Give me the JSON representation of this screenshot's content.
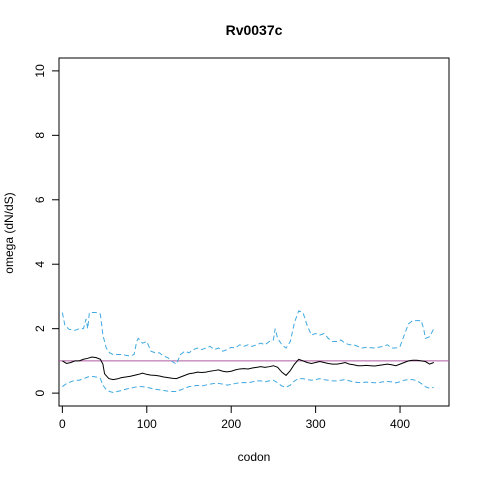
{
  "chart_data": {
    "type": "line",
    "title": "Rv0037c",
    "xlabel": "codon",
    "ylabel": "omega (dN/dS)",
    "xlim": [
      -4,
      458
    ],
    "ylim": [
      -0.4,
      10.4
    ],
    "xticks": [
      0,
      100,
      200,
      300,
      400
    ],
    "yticks": [
      0,
      2,
      4,
      6,
      8,
      10
    ],
    "grid": false,
    "reference_line": {
      "y": 1,
      "color": "#b05aa0"
    },
    "series": [
      {
        "style": "solid",
        "color": "#000000",
        "points": [
          [
            0,
            1.0
          ],
          [
            5,
            0.92
          ],
          [
            10,
            0.95
          ],
          [
            15,
            1.0
          ],
          [
            20,
            1.0
          ],
          [
            25,
            1.05
          ],
          [
            30,
            1.08
          ],
          [
            35,
            1.12
          ],
          [
            40,
            1.1
          ],
          [
            45,
            1.05
          ],
          [
            48,
            0.9
          ],
          [
            50,
            0.6
          ],
          [
            55,
            0.45
          ],
          [
            60,
            0.42
          ],
          [
            65,
            0.44
          ],
          [
            70,
            0.48
          ],
          [
            75,
            0.5
          ],
          [
            80,
            0.52
          ],
          [
            85,
            0.55
          ],
          [
            90,
            0.58
          ],
          [
            95,
            0.62
          ],
          [
            100,
            0.58
          ],
          [
            105,
            0.56
          ],
          [
            110,
            0.55
          ],
          [
            115,
            0.53
          ],
          [
            120,
            0.5
          ],
          [
            125,
            0.48
          ],
          [
            130,
            0.46
          ],
          [
            135,
            0.45
          ],
          [
            140,
            0.5
          ],
          [
            145,
            0.55
          ],
          [
            150,
            0.6
          ],
          [
            155,
            0.62
          ],
          [
            160,
            0.65
          ],
          [
            165,
            0.64
          ],
          [
            170,
            0.65
          ],
          [
            175,
            0.68
          ],
          [
            180,
            0.7
          ],
          [
            185,
            0.72
          ],
          [
            190,
            0.68
          ],
          [
            195,
            0.66
          ],
          [
            200,
            0.68
          ],
          [
            205,
            0.72
          ],
          [
            210,
            0.75
          ],
          [
            215,
            0.76
          ],
          [
            220,
            0.75
          ],
          [
            225,
            0.78
          ],
          [
            230,
            0.8
          ],
          [
            235,
            0.82
          ],
          [
            240,
            0.8
          ],
          [
            245,
            0.82
          ],
          [
            250,
            0.85
          ],
          [
            255,
            0.8
          ],
          [
            260,
            0.65
          ],
          [
            265,
            0.55
          ],
          [
            270,
            0.7
          ],
          [
            275,
            0.9
          ],
          [
            280,
            1.05
          ],
          [
            285,
            1.0
          ],
          [
            290,
            0.95
          ],
          [
            295,
            0.92
          ],
          [
            300,
            0.95
          ],
          [
            305,
            0.98
          ],
          [
            310,
            0.95
          ],
          [
            315,
            0.92
          ],
          [
            320,
            0.9
          ],
          [
            325,
            0.9
          ],
          [
            330,
            0.92
          ],
          [
            335,
            0.95
          ],
          [
            340,
            0.9
          ],
          [
            345,
            0.88
          ],
          [
            350,
            0.85
          ],
          [
            355,
            0.85
          ],
          [
            360,
            0.86
          ],
          [
            365,
            0.85
          ],
          [
            370,
            0.84
          ],
          [
            375,
            0.86
          ],
          [
            380,
            0.88
          ],
          [
            385,
            0.9
          ],
          [
            390,
            0.88
          ],
          [
            395,
            0.85
          ],
          [
            400,
            0.9
          ],
          [
            405,
            0.95
          ],
          [
            410,
            1.0
          ],
          [
            415,
            1.02
          ],
          [
            420,
            1.02
          ],
          [
            425,
            1.0
          ],
          [
            430,
            0.98
          ],
          [
            435,
            0.9
          ],
          [
            440,
            0.95
          ]
        ]
      },
      {
        "style": "dashed",
        "color": "#3fa9e0",
        "points": [
          [
            0,
            2.5
          ],
          [
            3,
            2.1
          ],
          [
            8,
            1.98
          ],
          [
            15,
            1.95
          ],
          [
            20,
            2.0
          ],
          [
            25,
            2.0
          ],
          [
            28,
            2.3
          ],
          [
            30,
            2.0
          ],
          [
            32,
            2.5
          ],
          [
            40,
            2.5
          ],
          [
            45,
            2.45
          ],
          [
            48,
            1.8
          ],
          [
            52,
            1.4
          ],
          [
            56,
            1.25
          ],
          [
            60,
            1.2
          ],
          [
            70,
            1.2
          ],
          [
            80,
            1.15
          ],
          [
            85,
            1.2
          ],
          [
            88,
            1.6
          ],
          [
            90,
            1.7
          ],
          [
            95,
            1.55
          ],
          [
            100,
            1.6
          ],
          [
            105,
            1.3
          ],
          [
            110,
            1.25
          ],
          [
            115,
            1.25
          ],
          [
            120,
            1.15
          ],
          [
            125,
            1.1
          ],
          [
            130,
            0.98
          ],
          [
            135,
            0.9
          ],
          [
            140,
            1.2
          ],
          [
            145,
            1.3
          ],
          [
            150,
            1.25
          ],
          [
            155,
            1.35
          ],
          [
            160,
            1.4
          ],
          [
            165,
            1.35
          ],
          [
            170,
            1.4
          ],
          [
            175,
            1.45
          ],
          [
            180,
            1.35
          ],
          [
            185,
            1.4
          ],
          [
            190,
            1.3
          ],
          [
            195,
            1.35
          ],
          [
            200,
            1.42
          ],
          [
            205,
            1.4
          ],
          [
            210,
            1.5
          ],
          [
            215,
            1.45
          ],
          [
            220,
            1.5
          ],
          [
            225,
            1.45
          ],
          [
            230,
            1.5
          ],
          [
            235,
            1.55
          ],
          [
            240,
            1.5
          ],
          [
            245,
            1.6
          ],
          [
            250,
            1.65
          ],
          [
            252,
            2.0
          ],
          [
            255,
            1.7
          ],
          [
            260,
            1.5
          ],
          [
            265,
            1.4
          ],
          [
            270,
            1.6
          ],
          [
            275,
            2.2
          ],
          [
            280,
            2.55
          ],
          [
            285,
            2.5
          ],
          [
            290,
            2.1
          ],
          [
            295,
            1.8
          ],
          [
            300,
            1.85
          ],
          [
            305,
            1.8
          ],
          [
            310,
            1.85
          ],
          [
            315,
            1.7
          ],
          [
            320,
            1.6
          ],
          [
            325,
            1.6
          ],
          [
            330,
            1.65
          ],
          [
            335,
            1.55
          ],
          [
            340,
            1.5
          ],
          [
            345,
            1.5
          ],
          [
            350,
            1.45
          ],
          [
            355,
            1.4
          ],
          [
            360,
            1.42
          ],
          [
            370,
            1.4
          ],
          [
            380,
            1.45
          ],
          [
            385,
            1.5
          ],
          [
            390,
            1.4
          ],
          [
            395,
            1.4
          ],
          [
            400,
            1.45
          ],
          [
            405,
            1.8
          ],
          [
            410,
            2.15
          ],
          [
            415,
            2.25
          ],
          [
            420,
            2.25
          ],
          [
            425,
            2.25
          ],
          [
            428,
            2.0
          ],
          [
            430,
            1.7
          ],
          [
            435,
            1.75
          ],
          [
            440,
            2.0
          ]
        ]
      },
      {
        "style": "dashed",
        "color": "#3fa9e0",
        "points": [
          [
            0,
            0.2
          ],
          [
            5,
            0.3
          ],
          [
            10,
            0.35
          ],
          [
            15,
            0.4
          ],
          [
            20,
            0.4
          ],
          [
            25,
            0.45
          ],
          [
            30,
            0.5
          ],
          [
            35,
            0.52
          ],
          [
            40,
            0.5
          ],
          [
            45,
            0.45
          ],
          [
            48,
            0.25
          ],
          [
            52,
            0.1
          ],
          [
            56,
            0.05
          ],
          [
            60,
            0.02
          ],
          [
            65,
            0.05
          ],
          [
            70,
            0.08
          ],
          [
            75,
            0.12
          ],
          [
            80,
            0.15
          ],
          [
            85,
            0.18
          ],
          [
            90,
            0.2
          ],
          [
            95,
            0.2
          ],
          [
            100,
            0.18
          ],
          [
            105,
            0.15
          ],
          [
            110,
            0.12
          ],
          [
            115,
            0.1
          ],
          [
            120,
            0.08
          ],
          [
            125,
            0.06
          ],
          [
            130,
            0.05
          ],
          [
            135,
            0.05
          ],
          [
            140,
            0.1
          ],
          [
            145,
            0.15
          ],
          [
            150,
            0.2
          ],
          [
            155,
            0.22
          ],
          [
            160,
            0.24
          ],
          [
            165,
            0.22
          ],
          [
            170,
            0.25
          ],
          [
            175,
            0.28
          ],
          [
            180,
            0.3
          ],
          [
            185,
            0.3
          ],
          [
            190,
            0.28
          ],
          [
            195,
            0.25
          ],
          [
            200,
            0.27
          ],
          [
            205,
            0.3
          ],
          [
            210,
            0.32
          ],
          [
            215,
            0.33
          ],
          [
            220,
            0.32
          ],
          [
            225,
            0.35
          ],
          [
            230,
            0.38
          ],
          [
            235,
            0.38
          ],
          [
            240,
            0.35
          ],
          [
            245,
            0.38
          ],
          [
            250,
            0.4
          ],
          [
            255,
            0.32
          ],
          [
            260,
            0.22
          ],
          [
            265,
            0.18
          ],
          [
            270,
            0.25
          ],
          [
            275,
            0.38
          ],
          [
            280,
            0.45
          ],
          [
            285,
            0.45
          ],
          [
            290,
            0.42
          ],
          [
            295,
            0.4
          ],
          [
            300,
            0.42
          ],
          [
            305,
            0.45
          ],
          [
            310,
            0.42
          ],
          [
            315,
            0.4
          ],
          [
            320,
            0.38
          ],
          [
            325,
            0.38
          ],
          [
            330,
            0.4
          ],
          [
            335,
            0.42
          ],
          [
            340,
            0.38
          ],
          [
            345,
            0.35
          ],
          [
            350,
            0.33
          ],
          [
            355,
            0.33
          ],
          [
            360,
            0.34
          ],
          [
            365,
            0.33
          ],
          [
            370,
            0.32
          ],
          [
            375,
            0.33
          ],
          [
            380,
            0.35
          ],
          [
            385,
            0.36
          ],
          [
            390,
            0.35
          ],
          [
            395,
            0.32
          ],
          [
            400,
            0.35
          ],
          [
            405,
            0.4
          ],
          [
            410,
            0.42
          ],
          [
            415,
            0.42
          ],
          [
            420,
            0.38
          ],
          [
            425,
            0.3
          ],
          [
            430,
            0.2
          ],
          [
            435,
            0.15
          ],
          [
            440,
            0.18
          ]
        ]
      }
    ]
  }
}
